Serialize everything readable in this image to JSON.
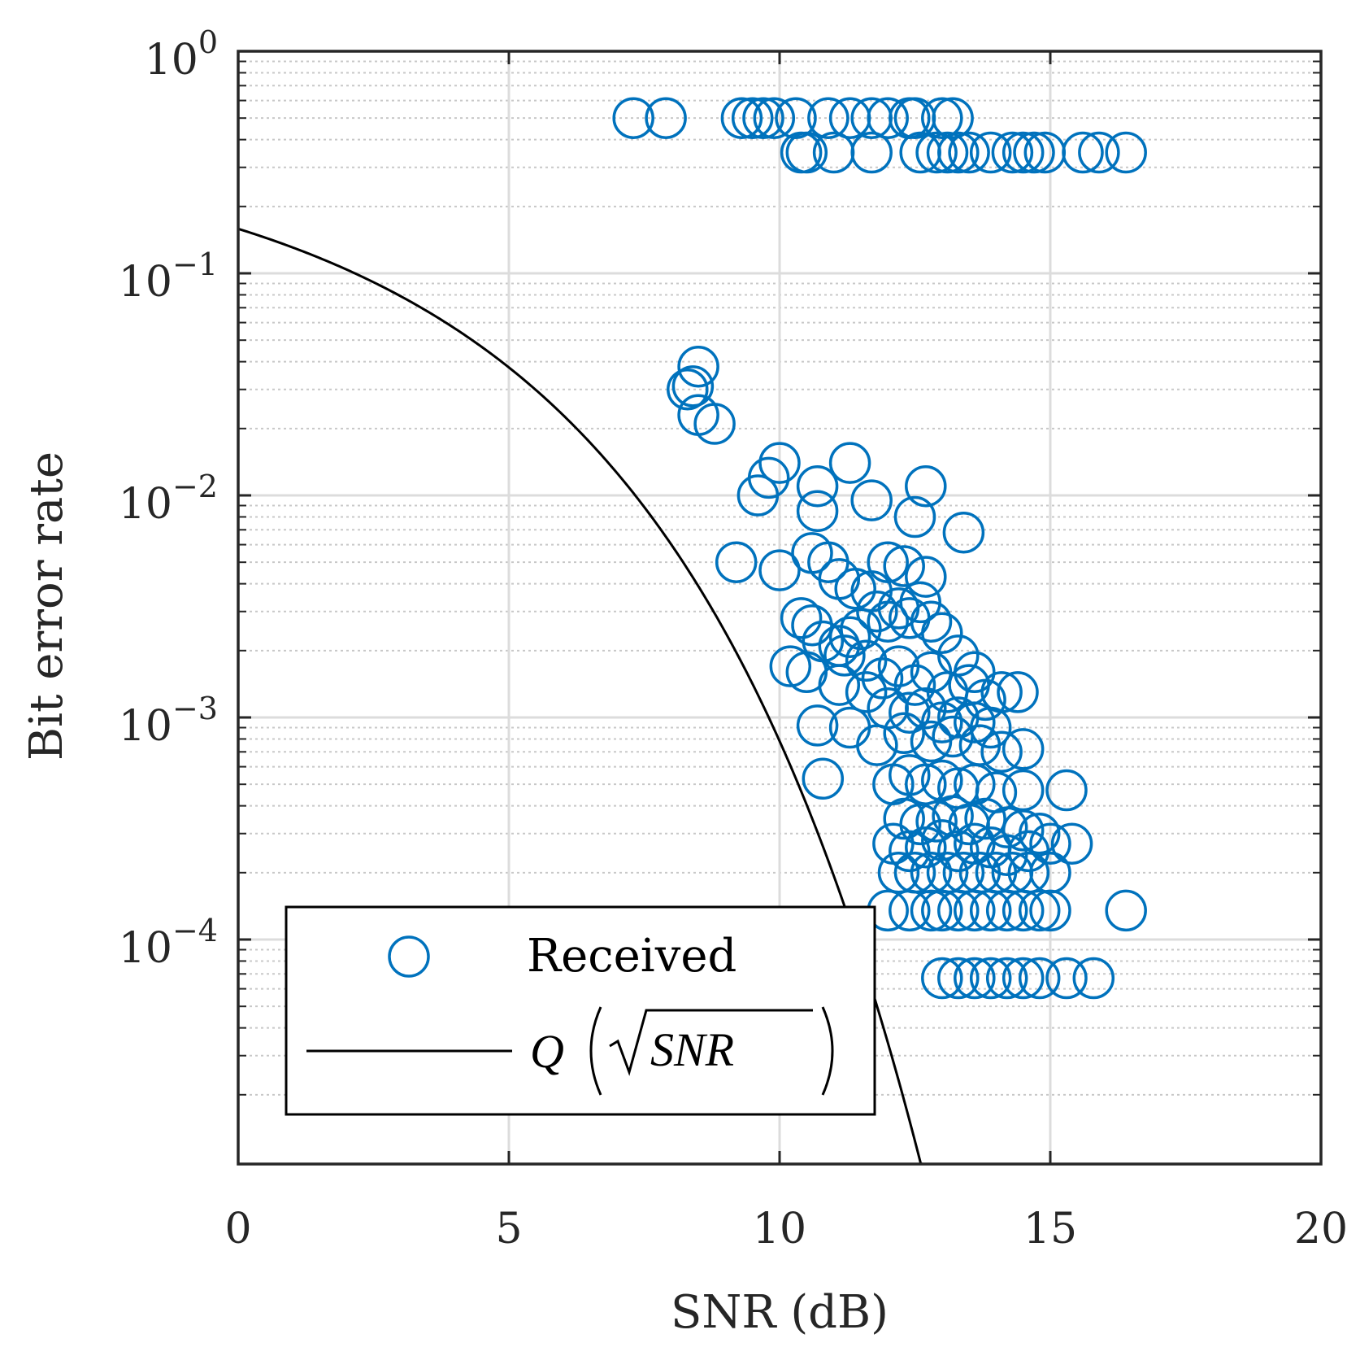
{
  "chart_data": {
    "type": "scatter",
    "xlabel": "SNR (dB)",
    "ylabel": "Bit error rate",
    "xlim": [
      0,
      20
    ],
    "ylim_log10": [
      -5.0,
      0
    ],
    "xscale": "linear",
    "yscale": "log",
    "grid": true,
    "x_ticks": [
      0,
      5,
      10,
      15,
      20
    ],
    "x_tick_labels": [
      "0",
      "5",
      "10",
      "15",
      "20"
    ],
    "y_ticks_exp": [
      0,
      -1,
      -2,
      -3,
      -4
    ],
    "y_tick_base": "10",
    "y_tick_exponents": [
      "0",
      "−1",
      "−2",
      "−3",
      "−4"
    ],
    "legend_position": "lower-left",
    "colors": {
      "received": "#0072BD",
      "theory": "#000000",
      "axis": "#262626"
    },
    "series": [
      {
        "name": "Received",
        "marker": "circle-open",
        "points": [
          [
            7.3,
            0.5
          ],
          [
            7.9,
            0.5
          ],
          [
            9.3,
            0.5
          ],
          [
            9.5,
            0.5
          ],
          [
            9.7,
            0.5
          ],
          [
            9.9,
            0.5
          ],
          [
            10.3,
            0.5
          ],
          [
            10.9,
            0.5
          ],
          [
            11.3,
            0.5
          ],
          [
            11.7,
            0.5
          ],
          [
            12.0,
            0.5
          ],
          [
            12.4,
            0.5
          ],
          [
            12.5,
            0.5
          ],
          [
            13.0,
            0.5
          ],
          [
            13.2,
            0.5
          ],
          [
            10.4,
            0.35
          ],
          [
            10.5,
            0.35
          ],
          [
            11.0,
            0.35
          ],
          [
            11.7,
            0.35
          ],
          [
            12.6,
            0.35
          ],
          [
            12.9,
            0.35
          ],
          [
            13.1,
            0.35
          ],
          [
            13.3,
            0.35
          ],
          [
            13.5,
            0.35
          ],
          [
            13.9,
            0.35
          ],
          [
            14.3,
            0.35
          ],
          [
            14.5,
            0.35
          ],
          [
            14.7,
            0.35
          ],
          [
            14.9,
            0.35
          ],
          [
            15.6,
            0.35
          ],
          [
            15.9,
            0.35
          ],
          [
            16.4,
            0.35
          ],
          [
            8.5,
            0.038
          ],
          [
            8.3,
            0.03
          ],
          [
            8.4,
            0.031
          ],
          [
            8.5,
            0.023
          ],
          [
            8.8,
            0.021
          ],
          [
            10.0,
            0.014
          ],
          [
            9.8,
            0.012
          ],
          [
            9.6,
            0.01
          ],
          [
            10.7,
            0.011
          ],
          [
            10.7,
            0.0085
          ],
          [
            11.3,
            0.014
          ],
          [
            11.7,
            0.0095
          ],
          [
            12.7,
            0.011
          ],
          [
            12.5,
            0.008
          ],
          [
            13.4,
            0.0068
          ],
          [
            9.2,
            0.005
          ],
          [
            10.0,
            0.0046
          ],
          [
            10.6,
            0.0055
          ],
          [
            10.9,
            0.005
          ],
          [
            11.1,
            0.0042
          ],
          [
            11.4,
            0.0038
          ],
          [
            11.7,
            0.0037
          ],
          [
            12.0,
            0.005
          ],
          [
            12.3,
            0.0048
          ],
          [
            12.7,
            0.0043
          ],
          [
            10.4,
            0.0028
          ],
          [
            10.6,
            0.0026
          ],
          [
            10.8,
            0.0022
          ],
          [
            11.1,
            0.0021
          ],
          [
            11.3,
            0.0023
          ],
          [
            11.5,
            0.0025
          ],
          [
            11.8,
            0.003
          ],
          [
            12.0,
            0.0027
          ],
          [
            12.2,
            0.0031
          ],
          [
            12.4,
            0.0028
          ],
          [
            12.6,
            0.0033
          ],
          [
            12.8,
            0.0027
          ],
          [
            13.0,
            0.0024
          ],
          [
            13.3,
            0.0019
          ],
          [
            13.6,
            0.0016
          ],
          [
            10.2,
            0.0017
          ],
          [
            10.5,
            0.0016
          ],
          [
            11.2,
            0.0019
          ],
          [
            11.6,
            0.0018
          ],
          [
            11.9,
            0.0015
          ],
          [
            12.2,
            0.0017
          ],
          [
            12.5,
            0.0014
          ],
          [
            12.8,
            0.0016
          ],
          [
            13.1,
            0.0013
          ],
          [
            13.5,
            0.0014
          ],
          [
            13.8,
            0.0012
          ],
          [
            14.1,
            0.0013
          ],
          [
            14.4,
            0.0013
          ],
          [
            11.1,
            0.0014
          ],
          [
            11.6,
            0.0013
          ],
          [
            12.0,
            0.0011
          ],
          [
            12.4,
            0.00105
          ],
          [
            12.7,
            0.0011
          ],
          [
            13.0,
            0.00095
          ],
          [
            13.3,
            0.001
          ],
          [
            13.6,
            0.00095
          ],
          [
            13.9,
            0.0009
          ],
          [
            10.7,
            0.00092
          ],
          [
            11.3,
            0.0009
          ],
          [
            11.8,
            0.00075
          ],
          [
            12.3,
            0.00085
          ],
          [
            12.8,
            0.00078
          ],
          [
            13.2,
            0.00082
          ],
          [
            13.7,
            0.00075
          ],
          [
            14.1,
            0.0007
          ],
          [
            14.5,
            0.00072
          ],
          [
            10.8,
            0.00053
          ],
          [
            12.1,
            0.0005
          ],
          [
            12.4,
            0.00055
          ],
          [
            12.7,
            0.0005
          ],
          [
            13.0,
            0.00052
          ],
          [
            13.3,
            0.00048
          ],
          [
            13.6,
            0.0005
          ],
          [
            14.0,
            0.00046
          ],
          [
            14.5,
            0.00047
          ],
          [
            15.3,
            0.00047
          ],
          [
            12.3,
            0.00035
          ],
          [
            12.6,
            0.00033
          ],
          [
            12.9,
            0.00034
          ],
          [
            13.2,
            0.00036
          ],
          [
            13.5,
            0.00033
          ],
          [
            13.8,
            0.00035
          ],
          [
            14.2,
            0.00032
          ],
          [
            14.5,
            0.00031
          ],
          [
            14.8,
            0.0003
          ],
          [
            12.1,
            0.00027
          ],
          [
            12.4,
            0.00025
          ],
          [
            12.7,
            0.00026
          ],
          [
            13.0,
            0.00028
          ],
          [
            13.3,
            0.00025
          ],
          [
            13.6,
            0.00027
          ],
          [
            13.9,
            0.00026
          ],
          [
            14.2,
            0.00024
          ],
          [
            14.6,
            0.00025
          ],
          [
            15.0,
            0.00027
          ],
          [
            15.4,
            0.00027
          ],
          [
            12.2,
            0.0002
          ],
          [
            12.5,
            0.0002
          ],
          [
            12.8,
            0.0002
          ],
          [
            13.1,
            0.0002
          ],
          [
            13.4,
            0.0002
          ],
          [
            13.7,
            0.0002
          ],
          [
            14.0,
            0.0002
          ],
          [
            14.3,
            0.0002
          ],
          [
            14.6,
            0.0002
          ],
          [
            15.0,
            0.0002
          ],
          [
            12.0,
            0.000135
          ],
          [
            12.4,
            0.000135
          ],
          [
            12.8,
            0.000135
          ],
          [
            13.0,
            0.000135
          ],
          [
            13.3,
            0.000135
          ],
          [
            13.6,
            0.000135
          ],
          [
            13.9,
            0.000135
          ],
          [
            14.2,
            0.000135
          ],
          [
            14.5,
            0.000135
          ],
          [
            14.8,
            0.000135
          ],
          [
            15.0,
            0.000135
          ],
          [
            16.4,
            0.000135
          ],
          [
            13.0,
            6.7e-05
          ],
          [
            13.3,
            6.7e-05
          ],
          [
            13.6,
            6.7e-05
          ],
          [
            13.9,
            6.7e-05
          ],
          [
            14.2,
            6.7e-05
          ],
          [
            14.5,
            6.7e-05
          ],
          [
            14.8,
            6.7e-05
          ],
          [
            15.3,
            6.7e-05
          ],
          [
            15.8,
            6.7e-05
          ]
        ]
      },
      {
        "name": "Q(√SNR)",
        "type": "line",
        "function": "0.5*erfc(sqrt(10^(x/10))/sqrt(2))",
        "x_range": [
          0,
          12.65
        ]
      }
    ],
    "legend": {
      "received_label": "Received",
      "theory_q": "Q",
      "theory_arg": "SNR"
    }
  }
}
